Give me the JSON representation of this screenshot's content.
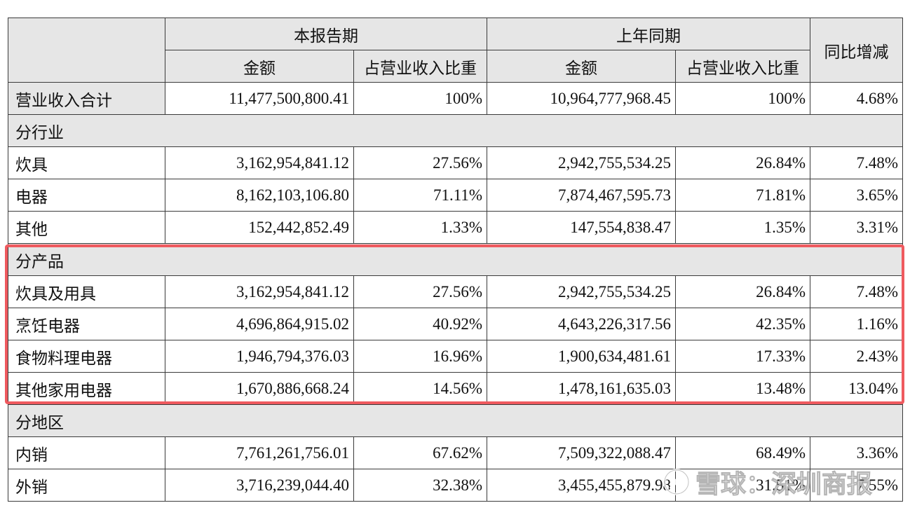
{
  "header": {
    "current_period": "本报告期",
    "previous_period": "上年同期",
    "yoy": "同比增减",
    "amount": "金额",
    "share": "占营业收入比重"
  },
  "total": {
    "label": "营业收入合计",
    "cur_amt": "11,477,500,800.41",
    "cur_pct": "100%",
    "prev_amt": "10,964,777,968.45",
    "prev_pct": "100%",
    "yoy": "4.68%"
  },
  "by_industry": {
    "title": "分行业",
    "rows": [
      {
        "label": "炊具",
        "cur_amt": "3,162,954,841.12",
        "cur_pct": "27.56%",
        "prev_amt": "2,942,755,534.25",
        "prev_pct": "26.84%",
        "yoy": "7.48%"
      },
      {
        "label": "电器",
        "cur_amt": "8,162,103,106.80",
        "cur_pct": "71.11%",
        "prev_amt": "7,874,467,595.73",
        "prev_pct": "71.81%",
        "yoy": "3.65%"
      },
      {
        "label": "其他",
        "cur_amt": "152,442,852.49",
        "cur_pct": "1.33%",
        "prev_amt": "147,554,838.47",
        "prev_pct": "1.35%",
        "yoy": "3.31%"
      }
    ]
  },
  "by_product": {
    "title": "分产品",
    "rows": [
      {
        "label": "炊具及用具",
        "cur_amt": "3,162,954,841.12",
        "cur_pct": "27.56%",
        "prev_amt": "2,942,755,534.25",
        "prev_pct": "26.84%",
        "yoy": "7.48%"
      },
      {
        "label": "烹饪电器",
        "cur_amt": "4,696,864,915.02",
        "cur_pct": "40.92%",
        "prev_amt": "4,643,226,317.56",
        "prev_pct": "42.35%",
        "yoy": "1.16%"
      },
      {
        "label": "食物料理电器",
        "cur_amt": "1,946,794,376.03",
        "cur_pct": "16.96%",
        "prev_amt": "1,900,634,481.61",
        "prev_pct": "17.33%",
        "yoy": "2.43%"
      },
      {
        "label": "其他家用电器",
        "cur_amt": "1,670,886,668.24",
        "cur_pct": "14.56%",
        "prev_amt": "1,478,161,635.03",
        "prev_pct": "13.48%",
        "yoy": "13.04%"
      }
    ]
  },
  "by_region": {
    "title": "分地区",
    "rows": [
      {
        "label": "内销",
        "cur_amt": "7,761,261,756.01",
        "cur_pct": "67.62%",
        "prev_amt": "7,509,322,088.47",
        "prev_pct": "68.49%",
        "yoy": "3.36%"
      },
      {
        "label": "外销",
        "cur_amt": "3,716,239,044.40",
        "cur_pct": "32.38%",
        "prev_amt": "3,455,455,879.98",
        "prev_pct": "31.51%",
        "yoy": "7.55%"
      }
    ]
  },
  "watermark": {
    "text": "雪球：深圳商报",
    "icon": "xueqiu-logo-icon"
  },
  "colors": {
    "header_bg": "#e6e6e6",
    "highlight": "#ef5a5f"
  }
}
